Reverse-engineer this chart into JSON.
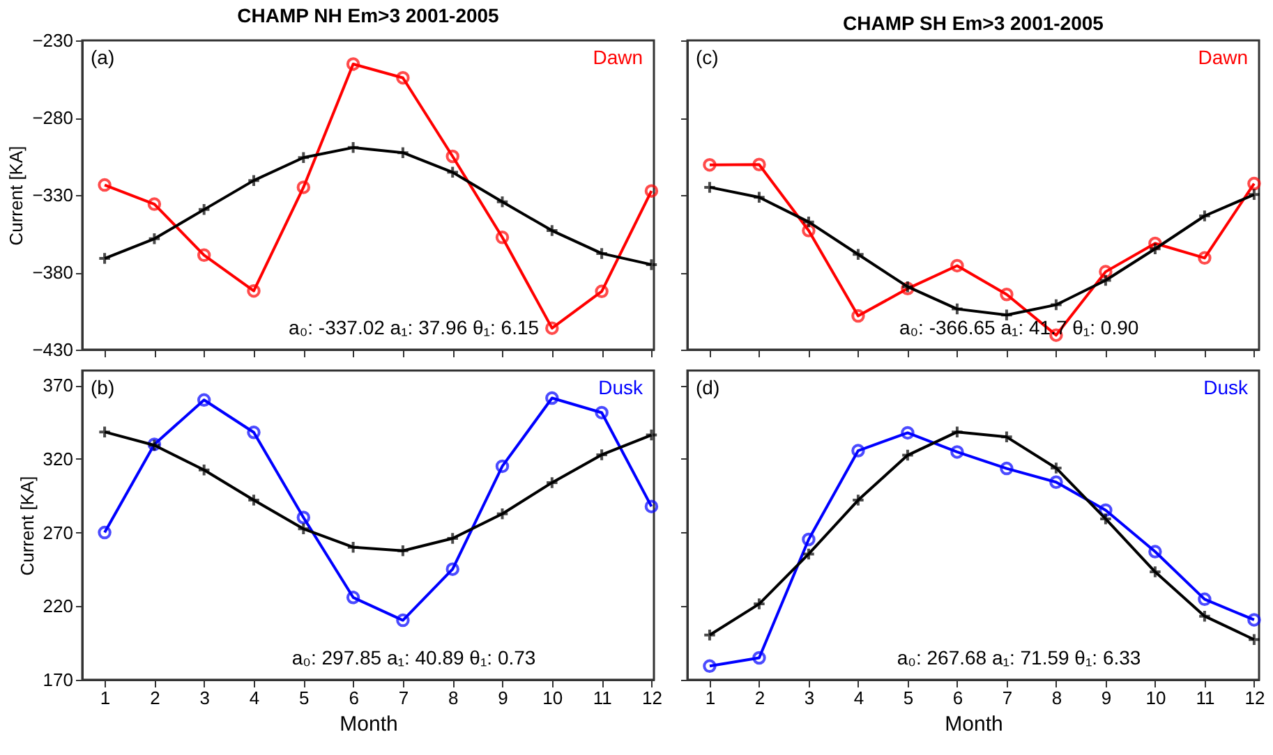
{
  "chart_data": [
    {
      "type": "line",
      "title": "CHAMP   NH   Em>3   2001-2005",
      "ylabel": "Current [KA]",
      "x": [
        1,
        2,
        3,
        4,
        5,
        6,
        7,
        8,
        9,
        10,
        11,
        12
      ],
      "xlim": [
        0.55,
        12.05
      ],
      "xticks": [
        1,
        2,
        3,
        4,
        5,
        6,
        7,
        8,
        9,
        10,
        11,
        12
      ],
      "ylim": [
        -430,
        -230
      ],
      "yticks": [
        -430,
        -380,
        -330,
        -280,
        -230
      ],
      "tick_labels": "y",
      "grid": false,
      "line_style": "solid",
      "annotations": [
        "(a)",
        "a₀: -337.02     a₁: 37.96     θ₁: 6.15"
      ],
      "series": [
        {
          "name": "Dawn",
          "color": "#ff0000",
          "marker": "circle",
          "values": [
            -323.5,
            -335.9,
            -368.9,
            -392,
            -325,
            -245.3,
            -254.2,
            -305,
            -357.4,
            -416.1,
            -392.3,
            -327.4
          ]
        },
        {
          "color": "#000000",
          "marker": "cross",
          "values": [
            -371,
            -358.3,
            -339.4,
            -320.6,
            -305.8,
            -299.3,
            -302.6,
            -315.3,
            -334.4,
            -353,
            -367.8,
            -375
          ]
        }
      ]
    },
    {
      "type": "line",
      "title": "CHAMP   SH   Em>3   2001-2005",
      "x": [
        1,
        2,
        3,
        4,
        5,
        6,
        7,
        8,
        9,
        10,
        11,
        12
      ],
      "xlim": [
        0.55,
        12.1
      ],
      "xticks": [
        1,
        2,
        3,
        4,
        5,
        6,
        7,
        8,
        9,
        10,
        11,
        12
      ],
      "ylim": [
        -430,
        -230
      ],
      "yticks": [
        -430,
        -380,
        -330,
        -280,
        -230
      ],
      "tick_labels": false,
      "grid": false,
      "line_style": "solid",
      "annotations": [
        "(c)",
        "a₀: -366.65     a₁: 41.7     θ₁: 0.90"
      ],
      "series": [
        {
          "name": "Dawn",
          "color": "#ff0000",
          "marker": "circle",
          "values": [
            -310.5,
            -310.3,
            -353,
            -408.2,
            -390.5,
            -375.7,
            -394.3,
            -420.6,
            -379.6,
            -361.3,
            -370.7,
            -322.6
          ]
        },
        {
          "color": "#000000",
          "marker": "cross",
          "values": [
            -325,
            -331.5,
            -347.4,
            -368.4,
            -389.3,
            -403.7,
            -407.6,
            -401,
            -385.2,
            -364.8,
            -343.5,
            -329.7
          ]
        }
      ]
    },
    {
      "type": "line",
      "xlabel": "Month",
      "ylabel": "Current [KA]",
      "x": [
        1,
        2,
        3,
        4,
        5,
        6,
        7,
        8,
        9,
        10,
        11,
        12
      ],
      "xlim": [
        0.55,
        12.05
      ],
      "xticks": [
        1,
        2,
        3,
        4,
        5,
        6,
        7,
        8,
        9,
        10,
        11,
        12
      ],
      "ylim": [
        170,
        380
      ],
      "yticks": [
        170,
        220,
        270,
        320,
        370
      ],
      "grid": false,
      "line_style": "solid",
      "annotations": [
        "(b)",
        "a₀: 297.85     a₁: 40.89     θ₁: 0.73"
      ],
      "series": [
        {
          "name": "Dusk",
          "color": "#0000ff",
          "marker": "circle",
          "values": [
            270,
            329.9,
            360,
            338,
            280.2,
            225.9,
            210.4,
            245.1,
            315,
            361.3,
            351.4,
            287.7
          ]
        },
        {
          "color": "#000000",
          "marker": "cross",
          "values": [
            338.3,
            329.3,
            312.5,
            292,
            272.5,
            260,
            257.6,
            266,
            282.7,
            303.9,
            322.8,
            336.2
          ]
        }
      ]
    },
    {
      "type": "line",
      "xlabel": "Month",
      "x": [
        1,
        2,
        3,
        4,
        5,
        6,
        7,
        8,
        9,
        10,
        11,
        12
      ],
      "xlim": [
        0.55,
        12.1
      ],
      "xticks": [
        1,
        2,
        3,
        4,
        5,
        6,
        7,
        8,
        9,
        10,
        11,
        12
      ],
      "ylim": [
        170,
        380
      ],
      "yticks": [
        170,
        220,
        270,
        320,
        370
      ],
      "tick_labels": "x",
      "grid": false,
      "line_style": "solid",
      "annotations": [
        "(d)",
        "a₀: 267.68     a₁: 71.59     θ₁: 6.33"
      ],
      "series": [
        {
          "name": "Dusk",
          "color": "#0000ff",
          "marker": "circle",
          "values": [
            179.3,
            184.9,
            265.3,
            325.6,
            337.7,
            324.7,
            313.5,
            304.2,
            285.2,
            257,
            224.7,
            210.7
          ]
        },
        {
          "color": "#000000",
          "marker": "cross",
          "values": [
            200.4,
            221.5,
            255.4,
            292,
            322.5,
            338.3,
            334.9,
            313.8,
            279.3,
            243.3,
            213.2,
            197.3
          ]
        }
      ]
    }
  ]
}
